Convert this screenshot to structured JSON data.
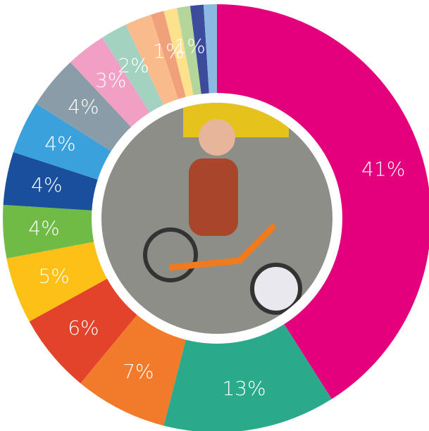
{
  "chart_data": {
    "type": "donut",
    "values": [
      41,
      13,
      7,
      6,
      5,
      4,
      4,
      4,
      4,
      3,
      2,
      2,
      1,
      1,
      1,
      1,
      1
    ],
    "value_labels": [
      "41%",
      "13%",
      "7%",
      "6%",
      "5%",
      "4%",
      "4%",
      "4%",
      "4%",
      "3%",
      "2%",
      null,
      "1%",
      null,
      "1%",
      null,
      null
    ],
    "colors": [
      "#e4007c",
      "#2aaa8a",
      "#f27a2b",
      "#e3422b",
      "#fcc017",
      "#6fbb46",
      "#1a4f9d",
      "#3ba1dd",
      "#8a9ca7",
      "#f19fc5",
      "#a3d3c0",
      "#f9bb8b",
      "#f1a07c",
      "#fde18c",
      "#b4d69a",
      "#3c4b9b",
      "#8cb9e1"
    ]
  }
}
